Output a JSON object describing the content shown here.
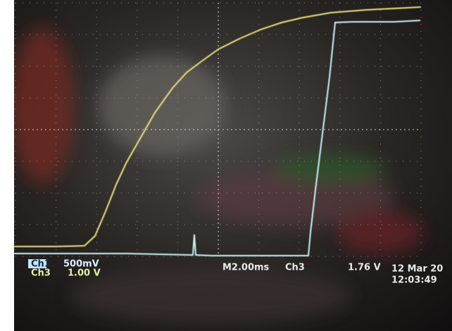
{
  "channels": [
    {
      "name": "Ch1",
      "scale": "500mV"
    },
    {
      "name": "Ch3",
      "scale": "1.00 V"
    }
  ],
  "timebase": "M2.00ms",
  "trigger": {
    "source": "Ch3",
    "level": "1.76 V"
  },
  "date": "12 Mar 20",
  "time": "12:03:49"
}
